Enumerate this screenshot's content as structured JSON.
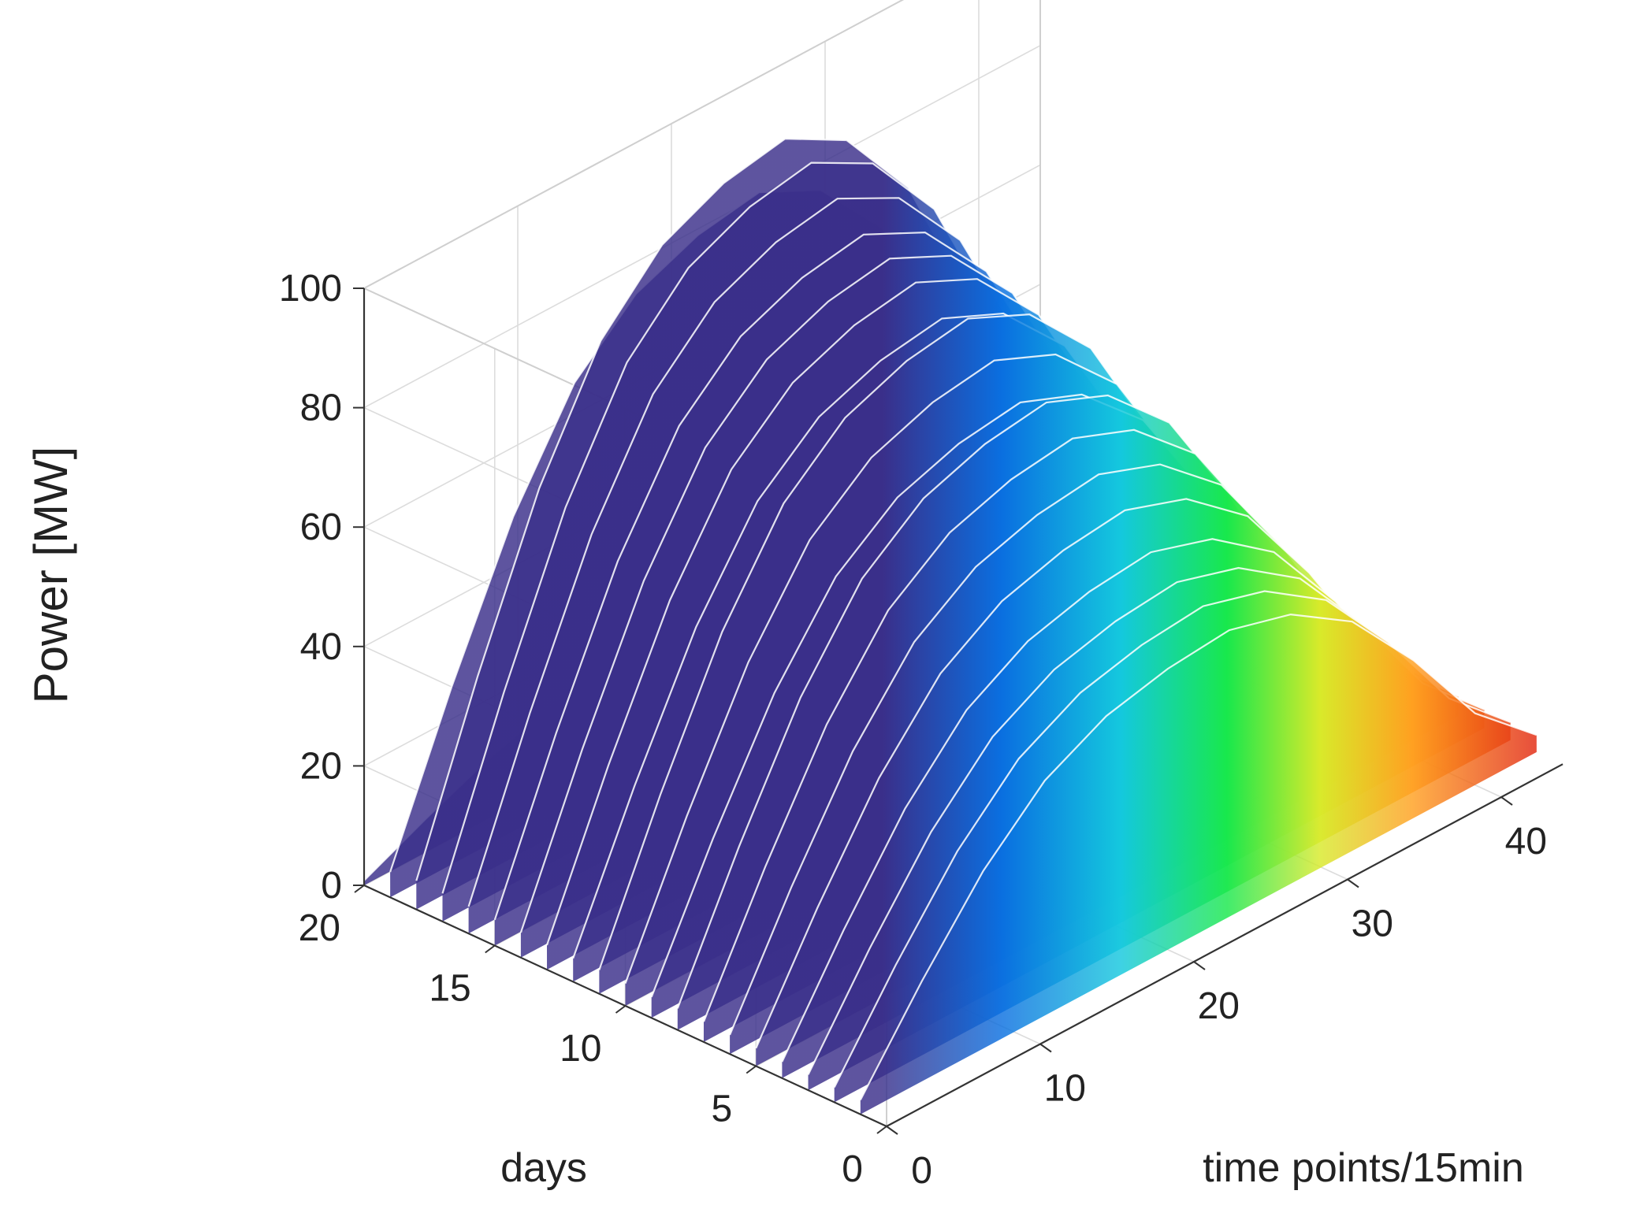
{
  "chart_data": {
    "type": "surface3d",
    "title": "",
    "xlabel": "time points/15min",
    "ylabel": "days",
    "zlabel": "Power [MW]",
    "xlim": [
      0,
      44
    ],
    "ylim": [
      0,
      20
    ],
    "zlim": [
      0,
      100
    ],
    "xticks": [
      0,
      10,
      20,
      30,
      40
    ],
    "yticks": [
      0,
      5,
      10,
      15,
      20
    ],
    "zticks": [
      0,
      20,
      40,
      60,
      80,
      100
    ],
    "grid": true,
    "colormap": "jet (colored along time points)",
    "colors": {
      "low": "#2b2f8c",
      "blue": "#0a7fe6",
      "cyan": "#12d6d6",
      "green": "#19e84a",
      "yellow": "#e8e52a",
      "orange": "#ff9a1f",
      "red": "#e01a10"
    },
    "days": [
      1,
      2,
      3,
      4,
      5,
      6,
      7,
      8,
      9,
      10,
      11,
      12,
      13,
      14,
      15,
      16,
      17,
      18,
      19,
      20
    ],
    "profile_time_points": [
      0,
      4,
      8,
      12,
      16,
      20,
      24,
      28,
      32,
      36,
      40,
      44
    ],
    "series": [
      {
        "day": 20,
        "peak": 16
      },
      {
        "day": 19,
        "peak": 85
      },
      {
        "day": 18,
        "peak": 96
      },
      {
        "day": 17,
        "peak": 94
      },
      {
        "day": 16,
        "peak": 90
      },
      {
        "day": 15,
        "peak": 86
      },
      {
        "day": 14,
        "peak": 84
      },
      {
        "day": 13,
        "peak": 82
      },
      {
        "day": 12,
        "peak": 78
      },
      {
        "day": 11,
        "peak": 80
      },
      {
        "day": 10,
        "peak": 75
      },
      {
        "day": 9,
        "peak": 70
      },
      {
        "day": 8,
        "peak": 72
      },
      {
        "day": 7,
        "peak": 68
      },
      {
        "day": 6,
        "peak": 64
      },
      {
        "day": 5,
        "peak": 60
      },
      {
        "day": 4,
        "peak": 55
      },
      {
        "day": 3,
        "peak": 52
      },
      {
        "day": 2,
        "peak": 50
      },
      {
        "day": 1,
        "peak": 48
      }
    ],
    "profile_shape": [
      0.05,
      0.35,
      0.62,
      0.82,
      0.93,
      0.98,
      1.0,
      0.94,
      0.8,
      0.55,
      0.25,
      0.06
    ]
  }
}
